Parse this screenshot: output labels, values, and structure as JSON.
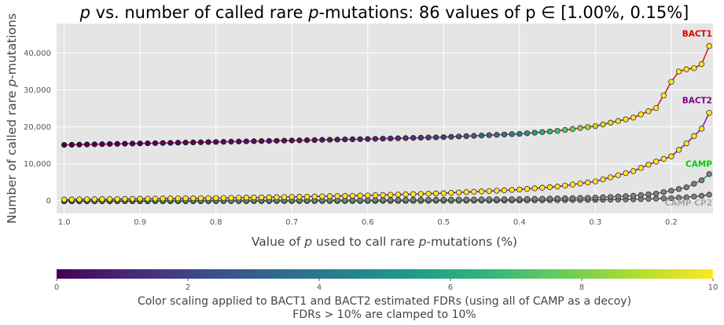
{
  "chart_data": {
    "type": "line",
    "title_parts": [
      "p",
      " vs. number of called rare ",
      "p",
      "-mutations: 86 values of p ",
      "∈",
      " [1.00%, 0.15%]"
    ],
    "xlabel_parts": [
      "Value of ",
      "p",
      " used to call rare ",
      "p",
      "-mutations (%)"
    ],
    "ylabel_parts": [
      "Number of called rare ",
      "p",
      "-mutations"
    ],
    "xlim": [
      1.01,
      0.145
    ],
    "ylim": [
      -3500,
      48000
    ],
    "x_reversed": true,
    "grid": true,
    "xticks": [
      1.0,
      0.9,
      0.8,
      0.7,
      0.6,
      0.5,
      0.4,
      0.3,
      0.2
    ],
    "xtick_labels": [
      "1.0",
      "0.9",
      "0.8",
      "0.7",
      "0.6",
      "0.5",
      "0.4",
      "0.3",
      "0.2"
    ],
    "yticks": [
      0,
      10000,
      20000,
      30000,
      40000
    ],
    "ytick_labels": [
      "0",
      "10,000",
      "20,000",
      "30,000",
      "40,000"
    ],
    "series": [
      {
        "name": "BACT1",
        "line_color": "#dd1c1c",
        "label_color": "#dd0000",
        "marker_color_mode": "fdr",
        "x_start": 1.0,
        "x_end": 0.15,
        "count": 86,
        "anchors_x": [
          1.0,
          0.9,
          0.8,
          0.7,
          0.6,
          0.5,
          0.4,
          0.35,
          0.3,
          0.25,
          0.22,
          0.21,
          0.2,
          0.19,
          0.18,
          0.17,
          0.16,
          0.15
        ],
        "anchors_y": [
          15100,
          15500,
          15900,
          16300,
          16700,
          17200,
          18100,
          18900,
          20200,
          22500,
          25100,
          28500,
          32200,
          35000,
          35600,
          35900,
          37000,
          41900
        ],
        "anchors_fdr": [
          0,
          0.2,
          0.4,
          0.6,
          1.0,
          2.0,
          4.5,
          7.0,
          9.0,
          10,
          10,
          10,
          10,
          10,
          10,
          10,
          10,
          10
        ]
      },
      {
        "name": "BACT2",
        "line_color": "#9b1aa8",
        "label_color": "#8b008b",
        "marker_color_mode": "fdr",
        "x_start": 1.0,
        "x_end": 0.15,
        "count": 86,
        "anchors_x": [
          1.0,
          0.9,
          0.8,
          0.7,
          0.6,
          0.5,
          0.4,
          0.35,
          0.3,
          0.25,
          0.22,
          0.2,
          0.18,
          0.17,
          0.16,
          0.15
        ],
        "anchors_y": [
          300,
          500,
          700,
          1000,
          1400,
          2000,
          3000,
          3800,
          5200,
          8000,
          10600,
          12000,
          15500,
          17500,
          19500,
          23800
        ],
        "anchors_fdr": [
          10,
          10,
          10,
          10,
          10,
          10,
          10,
          10,
          10,
          10,
          10,
          10,
          10,
          10,
          10,
          10
        ]
      },
      {
        "name": "CAMP",
        "line_color": "#2ca02c",
        "label_color": "#00cc00",
        "marker_color": "#808080",
        "x_start": 1.0,
        "x_end": 0.15,
        "count": 86,
        "anchors_x": [
          1.0,
          0.8,
          0.6,
          0.5,
          0.4,
          0.3,
          0.25,
          0.22,
          0.2,
          0.18,
          0.16,
          0.15
        ],
        "anchors_y": [
          0,
          60,
          150,
          250,
          400,
          800,
          1300,
          1900,
          2700,
          3600,
          5500,
          7200
        ]
      },
      {
        "name": "CAMP CP2",
        "line_color": "#666666",
        "label_color": "#a6a6a6",
        "marker_color": "#808080",
        "x_start": 1.0,
        "x_end": 0.15,
        "count": 86,
        "anchors_x": [
          1.0,
          0.8,
          0.6,
          0.5,
          0.4,
          0.3,
          0.25,
          0.2,
          0.18,
          0.16,
          0.15
        ],
        "anchors_y": [
          -200,
          -150,
          -100,
          -50,
          30,
          200,
          350,
          650,
          900,
          1300,
          1600
        ]
      }
    ],
    "colorbar": {
      "colormap": "viridis",
      "range": [
        0,
        10
      ],
      "ticks": [
        0,
        2,
        4,
        6,
        8,
        10
      ],
      "tick_labels": [
        "0",
        "2",
        "4",
        "6",
        "8",
        "10"
      ],
      "label_line1": "Color scaling applied to BACT1 and BACT2 estimated FDRs (using all of CAMP as a decoy)",
      "label_line2": "FDRs > 10% are clamped to 10%"
    },
    "colors": {
      "axes_bg": "#e5e5e5",
      "grid": "#ffffff",
      "marker_edge": "#1a1a1a"
    }
  }
}
